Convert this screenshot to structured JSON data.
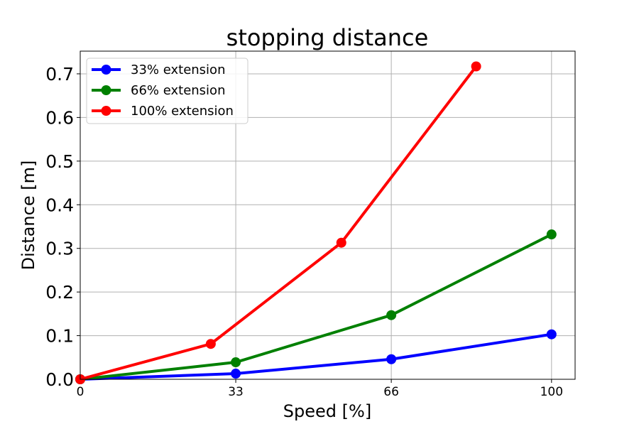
{
  "chart_data": {
    "type": "line",
    "title": "stopping distance",
    "xlabel": "Speed [%]",
    "ylabel": "Distance [m]",
    "xlim": [
      0,
      105
    ],
    "ylim": [
      0,
      0.752
    ],
    "xticks": [
      0,
      33,
      66,
      100
    ],
    "xtick_labels": [
      "0",
      "33",
      "66",
      "100"
    ],
    "yticks": [
      0,
      0.1,
      0.2,
      0.3,
      0.4,
      0.5,
      0.6,
      0.7
    ],
    "ytick_labels": [
      "0.0",
      "0.1",
      "0.2",
      "0.3",
      "0.4",
      "0.5",
      "0.6",
      "0.7"
    ],
    "grid": true,
    "legend_position": "top-left",
    "series": [
      {
        "name": "33% extension",
        "color": "#0000ff",
        "x": [
          0,
          33,
          66,
          100
        ],
        "y": [
          0,
          0.013,
          0.046,
          0.103
        ]
      },
      {
        "name": "66% extension",
        "color": "#008000",
        "x": [
          0,
          33,
          66,
          100
        ],
        "y": [
          0,
          0.039,
          0.147,
          0.332
        ]
      },
      {
        "name": "100% extension",
        "color": "#ff0000",
        "x": [
          0,
          27.7,
          55.4,
          84
        ],
        "y": [
          0,
          0.081,
          0.313,
          0.717
        ]
      }
    ]
  }
}
